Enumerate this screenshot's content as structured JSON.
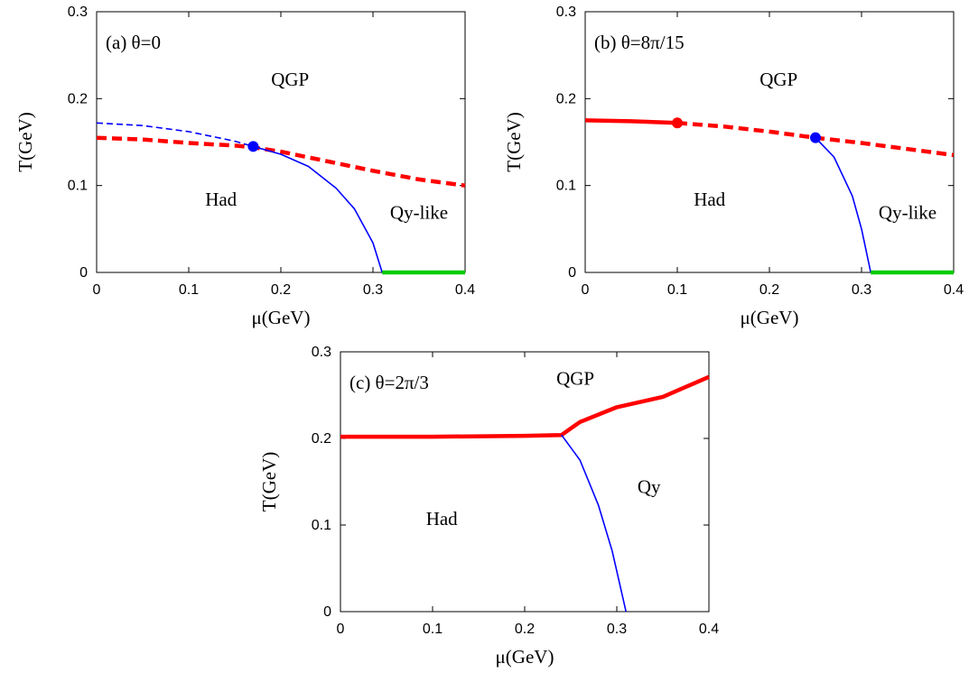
{
  "chart_data": [
    {
      "type": "line",
      "panel_label": "(a) θ=0",
      "xlabel": "μ(GeV)",
      "ylabel": "T(GeV)",
      "xlim": [
        0,
        0.4
      ],
      "ylim": [
        0,
        0.3
      ],
      "x_ticks": [
        "0",
        "0.1",
        "0.2",
        "0.3",
        "0.4"
      ],
      "y_ticks": [
        "0",
        "0.1",
        "0.2",
        "0.3"
      ],
      "region_labels": [
        {
          "text": "QGP",
          "x": 0.21,
          "y": 0.215
        },
        {
          "text": "Had",
          "x": 0.135,
          "y": 0.077
        },
        {
          "text": "Qy-like",
          "x": 0.35,
          "y": 0.062
        }
      ],
      "series": [
        {
          "color": "#ff0000",
          "style": "thick-dashed",
          "x": [
            0,
            0.05,
            0.1,
            0.15,
            0.17,
            0.2,
            0.25,
            0.3,
            0.35,
            0.4
          ],
          "y": [
            0.155,
            0.153,
            0.149,
            0.146,
            0.144,
            0.139,
            0.128,
            0.117,
            0.107,
            0.1
          ]
        },
        {
          "color": "#0000ff",
          "style": "thin-dashed",
          "x": [
            0,
            0.05,
            0.1,
            0.15,
            0.17
          ],
          "y": [
            0.172,
            0.169,
            0.162,
            0.151,
            0.145
          ]
        },
        {
          "color": "#0000ff",
          "style": "thin-solid",
          "x": [
            0.17,
            0.2,
            0.23,
            0.26,
            0.28,
            0.3,
            0.31
          ],
          "y": [
            0.145,
            0.136,
            0.122,
            0.097,
            0.073,
            0.034,
            0
          ]
        },
        {
          "color": "#00cc00",
          "style": "thick-solid",
          "x": [
            0.31,
            0.4
          ],
          "y": [
            0,
            0
          ]
        }
      ],
      "points": [
        {
          "color": "#0000ff",
          "x": 0.17,
          "y": 0.145
        }
      ]
    },
    {
      "type": "line",
      "panel_label": "(b) θ=8π/15",
      "xlabel": "μ(GeV)",
      "ylabel": "T(GeV)",
      "xlim": [
        0,
        0.4
      ],
      "ylim": [
        0,
        0.3
      ],
      "x_ticks": [
        "0",
        "0.1",
        "0.2",
        "0.3",
        "0.4"
      ],
      "y_ticks": [
        "0",
        "0.1",
        "0.2",
        "0.3"
      ],
      "region_labels": [
        {
          "text": "QGP",
          "x": 0.21,
          "y": 0.215
        },
        {
          "text": "Had",
          "x": 0.135,
          "y": 0.077
        },
        {
          "text": "Qy-like",
          "x": 0.35,
          "y": 0.062
        }
      ],
      "series": [
        {
          "color": "#ff0000",
          "style": "thick-solid",
          "x": [
            0,
            0.05,
            0.1
          ],
          "y": [
            0.175,
            0.174,
            0.172
          ]
        },
        {
          "color": "#ff0000",
          "style": "thick-dashed",
          "x": [
            0.1,
            0.15,
            0.2,
            0.25,
            0.3,
            0.35,
            0.4
          ],
          "y": [
            0.172,
            0.168,
            0.162,
            0.155,
            0.149,
            0.142,
            0.135
          ]
        },
        {
          "color": "#0000ff",
          "style": "thin-solid",
          "x": [
            0.25,
            0.27,
            0.29,
            0.3,
            0.31
          ],
          "y": [
            0.155,
            0.133,
            0.088,
            0.05,
            0
          ]
        },
        {
          "color": "#00cc00",
          "style": "thick-solid",
          "x": [
            0.31,
            0.4
          ],
          "y": [
            0,
            0
          ]
        }
      ],
      "points": [
        {
          "color": "#ff0000",
          "x": 0.1,
          "y": 0.172
        },
        {
          "color": "#0000ff",
          "x": 0.25,
          "y": 0.155
        }
      ]
    },
    {
      "type": "line",
      "panel_label": "(c) θ=2π/3",
      "xlabel": "μ(GeV)",
      "ylabel": "T(GeV)",
      "xlim": [
        0,
        0.4
      ],
      "ylim": [
        0,
        0.3
      ],
      "x_ticks": [
        "0",
        "0.1",
        "0.2",
        "0.3",
        "0.4"
      ],
      "y_ticks": [
        "0",
        "0.1",
        "0.2",
        "0.3"
      ],
      "region_labels": [
        {
          "text": "QGP",
          "x": 0.255,
          "y": 0.262
        },
        {
          "text": "Had",
          "x": 0.11,
          "y": 0.1
        },
        {
          "text": "Qy",
          "x": 0.335,
          "y": 0.137
        }
      ],
      "series": [
        {
          "color": "#ff0000",
          "style": "thick-solid",
          "x": [
            0,
            0.1,
            0.2,
            0.24,
            0.26,
            0.3,
            0.35,
            0.4
          ],
          "y": [
            0.202,
            0.202,
            0.203,
            0.204,
            0.219,
            0.236,
            0.248,
            0.271
          ]
        },
        {
          "color": "#0000ff",
          "style": "thin-solid",
          "x": [
            0.24,
            0.26,
            0.28,
            0.295,
            0.31
          ],
          "y": [
            0.204,
            0.175,
            0.123,
            0.07,
            0
          ]
        }
      ],
      "points": []
    }
  ]
}
